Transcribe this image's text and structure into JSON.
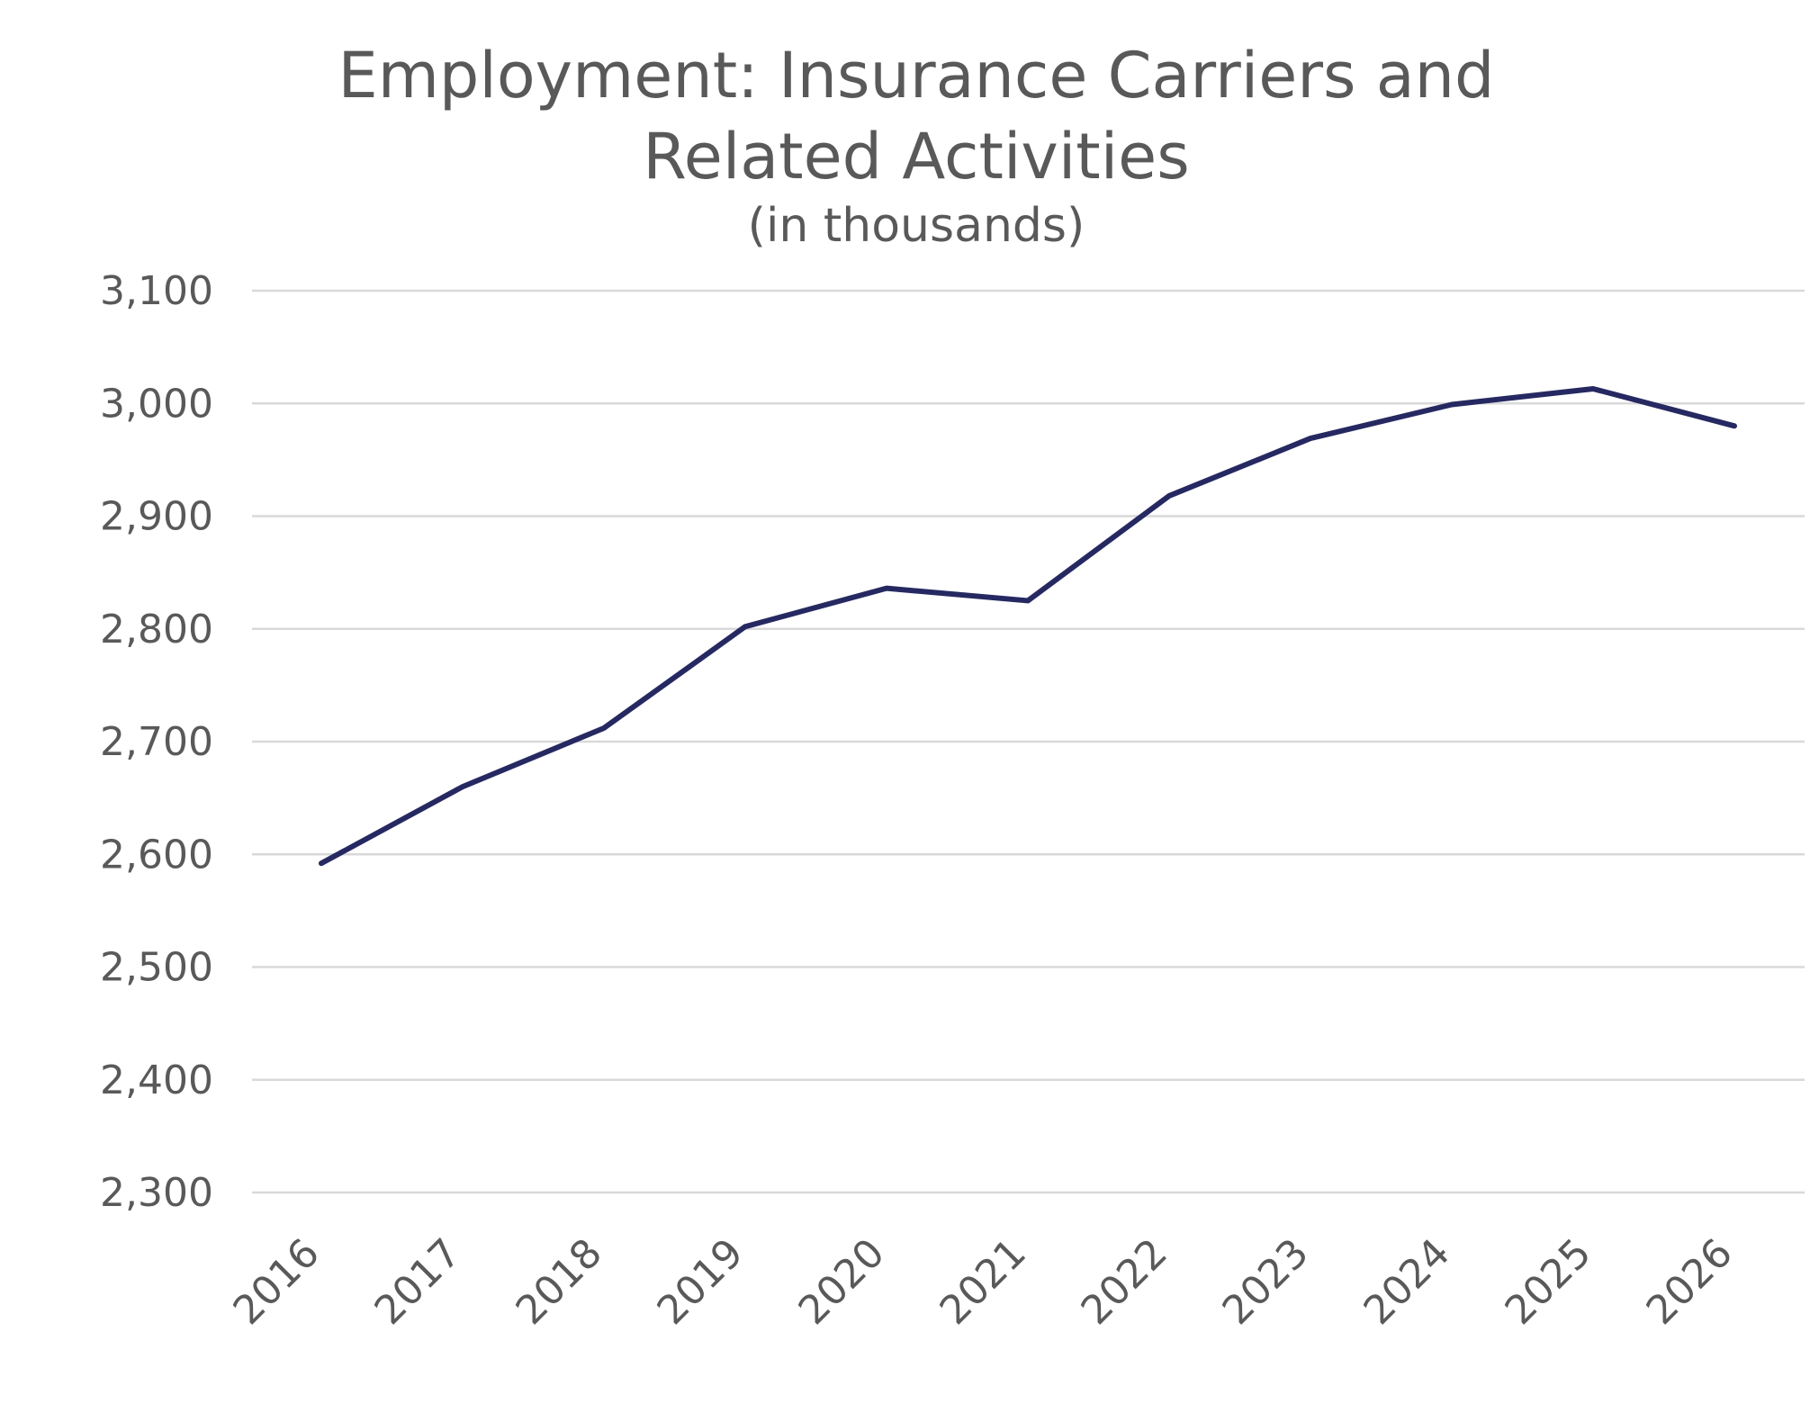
{
  "chart_data": {
    "type": "line",
    "title_lines": [
      "Employment: Insurance Carriers and",
      "Related Activities"
    ],
    "subtitle": "(in thousands)",
    "xlabel": "",
    "ylabel": "",
    "x": [
      "2016",
      "2017",
      "2018",
      "2019",
      "2020",
      "2021",
      "2022",
      "2023",
      "2024",
      "2025",
      "2026"
    ],
    "series": [
      {
        "values": [
          2592,
          2660,
          2712,
          2802,
          2836,
          2825,
          2918,
          2969,
          2999,
          3013,
          2980
        ],
        "color": "#262961"
      }
    ],
    "ylim": [
      2300,
      3100
    ],
    "yticks": [
      "3,100",
      "3,000",
      "2,900",
      "2,800",
      "2,700",
      "2,600",
      "2,500",
      "2,400",
      "2,300"
    ],
    "ytick_values": [
      3100,
      3000,
      2900,
      2800,
      2700,
      2600,
      2500,
      2400,
      2300
    ],
    "grid": true,
    "legend": "none",
    "colors": {
      "text": "#595959",
      "grid": "#d9d9d9",
      "line": "#262961"
    }
  }
}
